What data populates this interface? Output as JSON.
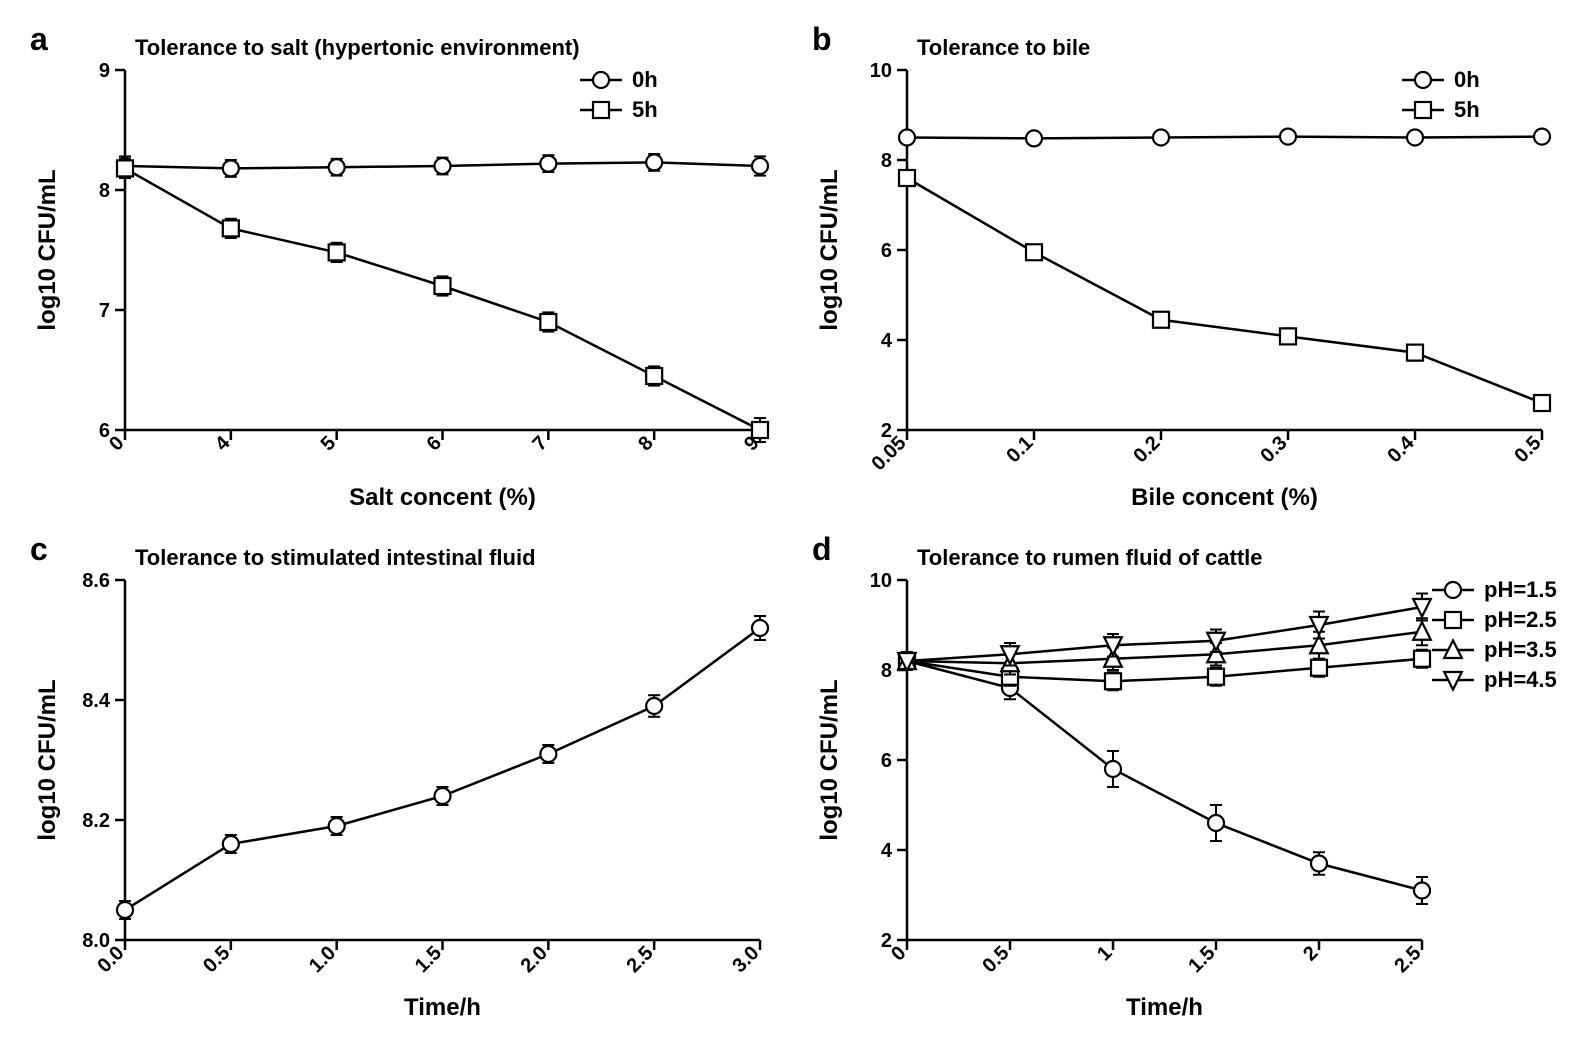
{
  "global": {
    "background_color": "#ffffff",
    "line_color": "#000000",
    "marker_fill": "#ffffff",
    "marker_stroke": "#000000",
    "font_family": "Arial",
    "axis_stroke_width": 2.5,
    "data_stroke_width": 2.5,
    "marker_size": 8
  },
  "panel_a": {
    "letter": "a",
    "title": "Tolerance to salt (hypertonic environment)",
    "xlabel": "Salt concent (%)",
    "ylabel": "log10 CFU/mL",
    "xticks": [
      0,
      4,
      5,
      6,
      7,
      8,
      9
    ],
    "yticks": [
      6,
      7,
      8,
      9
    ],
    "xlim": [
      0,
      9
    ],
    "ylim": [
      6,
      9
    ],
    "series": [
      {
        "label": "0h",
        "marker": "circle",
        "x": [
          0,
          4,
          5,
          6,
          7,
          8,
          9
        ],
        "y": [
          8.2,
          8.18,
          8.19,
          8.2,
          8.22,
          8.23,
          8.2
        ],
        "err": [
          0.08,
          0.07,
          0.07,
          0.07,
          0.07,
          0.07,
          0.08
        ]
      },
      {
        "label": "5h",
        "marker": "square",
        "x": [
          0,
          4,
          5,
          6,
          7,
          8,
          9
        ],
        "y": [
          8.18,
          7.68,
          7.48,
          7.2,
          6.9,
          6.45,
          6.0
        ],
        "err": [
          0.08,
          0.08,
          0.08,
          0.08,
          0.08,
          0.08,
          0.1
        ]
      }
    ]
  },
  "panel_b": {
    "letter": "b",
    "title": "Tolerance to bile",
    "xlabel": "Bile concent (%)",
    "ylabel": "log10 CFU/mL",
    "xticks": [
      0.05,
      0.1,
      0.2,
      0.3,
      0.4,
      0.5
    ],
    "yticks": [
      2,
      4,
      6,
      8,
      10
    ],
    "xlim": [
      0.05,
      0.5
    ],
    "ylim": [
      2,
      10
    ],
    "series": [
      {
        "label": "0h",
        "marker": "circle",
        "x": [
          0.05,
          0.1,
          0.2,
          0.3,
          0.4,
          0.5
        ],
        "y": [
          8.5,
          8.48,
          8.5,
          8.52,
          8.5,
          8.52
        ],
        "err": [
          0.12,
          0.12,
          0.12,
          0.12,
          0.12,
          0.12
        ]
      },
      {
        "label": "5h",
        "marker": "square",
        "x": [
          0.05,
          0.1,
          0.2,
          0.3,
          0.4,
          0.5
        ],
        "y": [
          7.6,
          5.95,
          4.45,
          4.08,
          3.72,
          2.6
        ],
        "err": [
          0.15,
          0.12,
          0.15,
          0.18,
          0.18,
          0.15
        ]
      }
    ]
  },
  "panel_c": {
    "letter": "c",
    "title": "Tolerance to stimulated intestinal fluid",
    "xlabel": "Time/h",
    "ylabel": "log10 CFU/mL",
    "xticks": [
      0.0,
      0.5,
      1.0,
      1.5,
      2.0,
      2.5,
      3.0
    ],
    "yticks": [
      8.0,
      8.2,
      8.4,
      8.6
    ],
    "xlim": [
      0.0,
      3.0
    ],
    "ylim": [
      8.0,
      8.6
    ],
    "series": [
      {
        "label": "",
        "marker": "circle",
        "x": [
          0.0,
          0.5,
          1.0,
          1.5,
          2.0,
          2.5,
          3.0
        ],
        "y": [
          8.05,
          8.16,
          8.19,
          8.24,
          8.31,
          8.39,
          8.52
        ],
        "err": [
          0.015,
          0.015,
          0.015,
          0.015,
          0.015,
          0.018,
          0.02
        ]
      }
    ]
  },
  "panel_d": {
    "letter": "d",
    "title": "Tolerance to rumen fluid of cattle",
    "xlabel": "Time/h",
    "ylabel": "log10 CFU/mL",
    "xticks": [
      0,
      0.5,
      1,
      1.5,
      2,
      2.5
    ],
    "yticks": [
      2,
      4,
      6,
      8,
      10
    ],
    "xlim": [
      0,
      2.5
    ],
    "ylim": [
      2,
      10
    ],
    "series": [
      {
        "label": "pH=1.5",
        "marker": "circle",
        "x": [
          0,
          0.5,
          1,
          1.5,
          2,
          2.5
        ],
        "y": [
          8.2,
          7.6,
          5.8,
          4.6,
          3.7,
          3.1
        ],
        "err": [
          0.2,
          0.25,
          0.4,
          0.4,
          0.25,
          0.3
        ]
      },
      {
        "label": "pH=2.5",
        "marker": "square",
        "x": [
          0,
          0.5,
          1,
          1.5,
          2,
          2.5
        ],
        "y": [
          8.2,
          7.85,
          7.75,
          7.85,
          8.05,
          8.25
        ],
        "err": [
          0.2,
          0.2,
          0.2,
          0.2,
          0.2,
          0.2
        ]
      },
      {
        "label": "pH=3.5",
        "marker": "triangle-up",
        "x": [
          0,
          0.5,
          1,
          1.5,
          2,
          2.5
        ],
        "y": [
          8.2,
          8.15,
          8.25,
          8.35,
          8.55,
          8.85
        ],
        "err": [
          0.2,
          0.25,
          0.25,
          0.25,
          0.3,
          0.3
        ]
      },
      {
        "label": "pH=4.5",
        "marker": "triangle-down",
        "x": [
          0,
          0.5,
          1,
          1.5,
          2,
          2.5
        ],
        "y": [
          8.2,
          8.35,
          8.55,
          8.65,
          9.0,
          9.4
        ],
        "err": [
          0.2,
          0.25,
          0.25,
          0.25,
          0.3,
          0.3
        ]
      }
    ]
  }
}
